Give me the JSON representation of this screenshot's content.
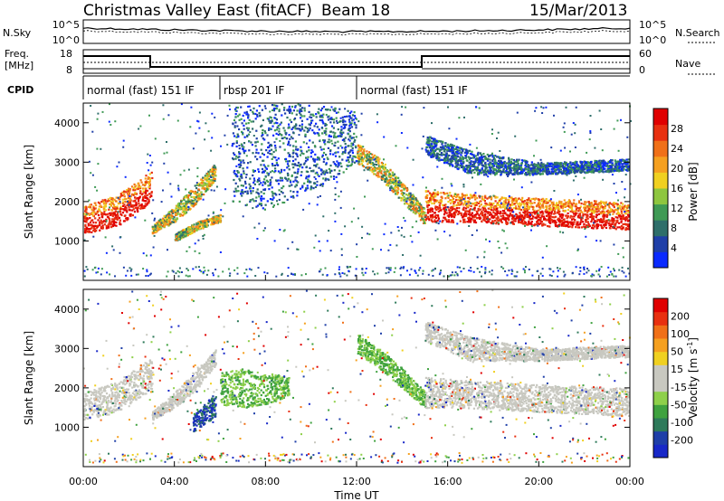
{
  "header": {
    "station": "Christmas Valley East (fitACF)",
    "beam": "Beam 18",
    "date": "15/Mar/2013"
  },
  "noise_panel": {
    "left_label": "N.Sky",
    "right_label": "N.Search",
    "left_ticks": [
      "10^5",
      "10^0"
    ],
    "right_ticks": [
      "10^5",
      "10^0"
    ]
  },
  "freq_panel": {
    "left_label_line1": "Freq.",
    "left_label_line2": "[MHz]",
    "right_label": "Nave",
    "left_ticks": [
      "18",
      "8"
    ],
    "right_ticks": [
      "60",
      "0"
    ]
  },
  "cpid_panel": {
    "label": "CPID",
    "segments": [
      {
        "label": "normal (fast) 151 IF",
        "start_h": 0,
        "end_h": 6
      },
      {
        "label": "rbsp 201 IF",
        "start_h": 6,
        "end_h": 12
      },
      {
        "label": "normal (fast) 151 IF",
        "start_h": 12,
        "end_h": 24
      }
    ]
  },
  "colorbars": {
    "power": {
      "label": "Power [dB]",
      "ticks": [
        "28",
        "24",
        "20",
        "16",
        "12",
        "8",
        "4"
      ],
      "colors": [
        "#0a2aff",
        "#1f3fa8",
        "#2e6e6a",
        "#3f9a55",
        "#8ec63f",
        "#f0d020",
        "#f5a020",
        "#f07018",
        "#e83010",
        "#e00000"
      ]
    },
    "velocity": {
      "label_main": "Velocity [m s",
      "label_sup": "-1",
      "label_end": "]",
      "ticks": [
        "200",
        "100",
        "50",
        "15",
        "-15",
        "-50",
        "-100",
        "-200"
      ],
      "colors": [
        "#1828c8",
        "#1f3fa8",
        "#2e7a5a",
        "#3fa23f",
        "#8ed04a",
        "#c8c8c0",
        "#c8c8c0",
        "#f0d020",
        "#f5a020",
        "#f07018",
        "#e83010",
        "#e00000"
      ]
    }
  },
  "chart_data": [
    {
      "type": "heatmap",
      "name": "power",
      "ylabel": "Slant Range [km]",
      "xlabel": "",
      "ylim": [
        0,
        4500
      ],
      "y_ticks": [
        1000,
        2000,
        3000,
        4000
      ],
      "xlim": [
        0,
        24
      ],
      "bands": [
        {
          "x": [
            0,
            1.5,
            2.5,
            3.0
          ],
          "lo": [
            1200,
            1400,
            1800,
            2000
          ],
          "hi": [
            1900,
            2200,
            2600,
            2800
          ],
          "pow": "high"
        },
        {
          "x": [
            3.0,
            4.0,
            5.0,
            5.8
          ],
          "lo": [
            1200,
            1500,
            2000,
            2600
          ],
          "hi": [
            1400,
            1900,
            2500,
            3000
          ],
          "pow": "mid"
        },
        {
          "x": [
            4.0,
            5.0,
            6.0
          ],
          "lo": [
            1000,
            1300,
            1500
          ],
          "hi": [
            1200,
            1500,
            1700
          ],
          "pow": "mid"
        },
        {
          "x": [
            6.5,
            8.0,
            9.5,
            11.0,
            12.0
          ],
          "lo": [
            2000,
            1800,
            2200,
            2600,
            3000
          ],
          "hi": [
            4400,
            4500,
            4500,
            4400,
            4300
          ],
          "pow": "low"
        },
        {
          "x": [
            12.0,
            13.0,
            14.0,
            15.0
          ],
          "lo": [
            3000,
            2600,
            2000,
            1400
          ],
          "hi": [
            3500,
            3100,
            2500,
            1800
          ],
          "pow": "mid"
        },
        {
          "x": [
            15.0,
            17.0,
            20.0,
            24.0
          ],
          "lo": [
            1500,
            1500,
            1400,
            1300
          ],
          "hi": [
            2300,
            2200,
            2100,
            2000
          ],
          "pow": "high"
        },
        {
          "x": [
            15.0,
            17.0,
            20.0,
            24.0
          ],
          "lo": [
            3200,
            2700,
            2700,
            2800
          ],
          "hi": [
            3700,
            3300,
            3000,
            3100
          ],
          "pow": "low"
        }
      ]
    },
    {
      "type": "heatmap",
      "name": "velocity",
      "ylabel": "Slant Range [km]",
      "xlabel": "Time UT",
      "ylim": [
        0,
        4500
      ],
      "y_ticks": [
        1000,
        2000,
        3000,
        4000
      ],
      "xlim": [
        0,
        24
      ],
      "x_ticks": [
        "00:00",
        "04:00",
        "08:00",
        "12:00",
        "16:00",
        "20:00",
        "00:00"
      ],
      "bands": [
        {
          "x": [
            0,
            1.5,
            2.5,
            3.0
          ],
          "lo": [
            1200,
            1400,
            1800,
            2000
          ],
          "hi": [
            1900,
            2200,
            2600,
            2800
          ],
          "vel": "gray"
        },
        {
          "x": [
            3.0,
            4.0,
            5.0,
            5.8
          ],
          "lo": [
            1200,
            1500,
            2000,
            2600
          ],
          "hi": [
            1400,
            1900,
            2500,
            3000
          ],
          "vel": "gray"
        },
        {
          "x": [
            4.8,
            5.3,
            5.8
          ],
          "lo": [
            900,
            1100,
            1300
          ],
          "hi": [
            1300,
            1600,
            1900
          ],
          "vel": "blue"
        },
        {
          "x": [
            6.0,
            7.0,
            8.0,
            9.0
          ],
          "lo": [
            1600,
            1500,
            1600,
            1800
          ],
          "hi": [
            2400,
            2500,
            2400,
            2300
          ],
          "vel": "green"
        },
        {
          "x": [
            12.0,
            13.0,
            14.0,
            15.0
          ],
          "lo": [
            2900,
            2500,
            2000,
            1500
          ],
          "hi": [
            3400,
            3000,
            2500,
            1900
          ],
          "vel": "green"
        },
        {
          "x": [
            15.0,
            17.0,
            20.0,
            24.0
          ],
          "lo": [
            1500,
            1500,
            1400,
            1300
          ],
          "hi": [
            2300,
            2200,
            2100,
            2000
          ],
          "vel": "gray"
        },
        {
          "x": [
            15.0,
            17.0,
            20.0,
            24.0
          ],
          "lo": [
            3200,
            2700,
            2700,
            2800
          ],
          "hi": [
            3700,
            3300,
            3000,
            3100
          ],
          "vel": "gray"
        }
      ]
    }
  ]
}
